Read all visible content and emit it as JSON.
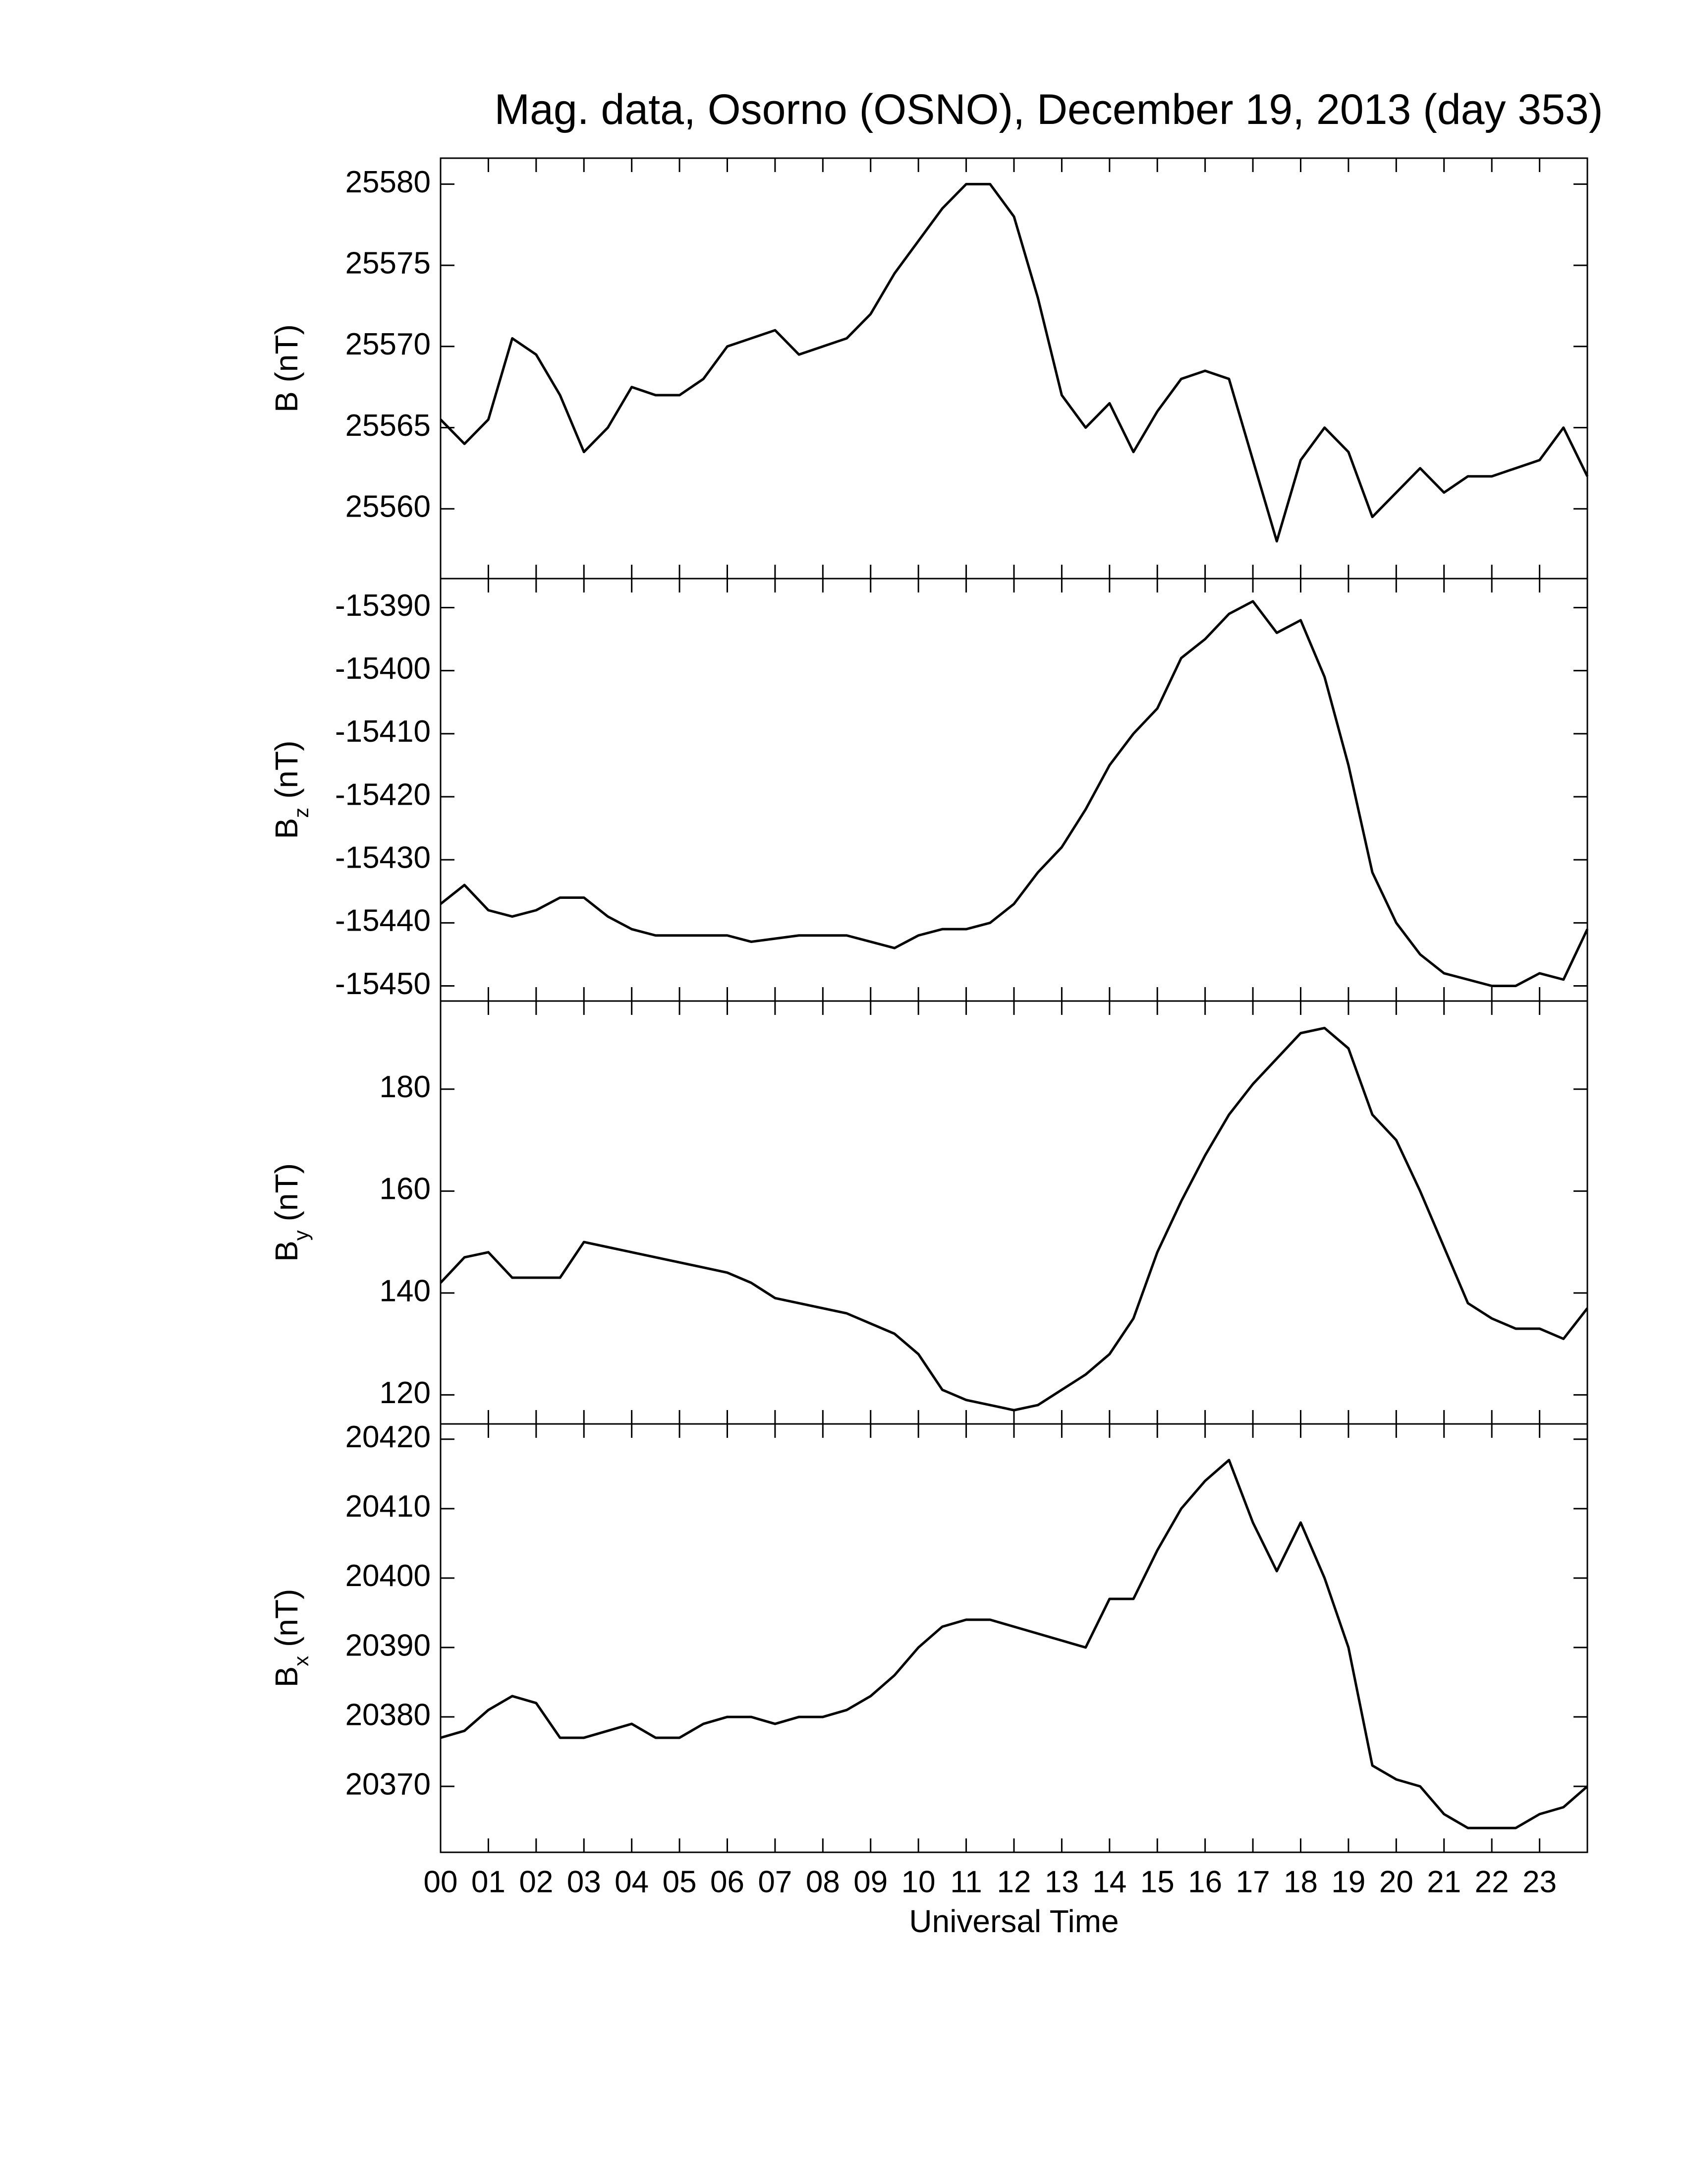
{
  "chart_data": [
    {
      "type": "line",
      "title": "Mag. data, Osorno (OSNO), December 19, 2013 (day 353)",
      "ylabel": "B",
      "ylabel_unit": "(nT)",
      "xlim": [
        0,
        24
      ],
      "ylim": [
        25555.7,
        25581.6
      ],
      "yticks": [
        25560,
        25565,
        25570,
        25575,
        25580
      ],
      "x": [
        0,
        0.5,
        1,
        1.5,
        2,
        2.5,
        3,
        3.5,
        4,
        4.5,
        5,
        5.5,
        6,
        6.5,
        7,
        7.5,
        8,
        8.5,
        9,
        9.5,
        10,
        10.5,
        11,
        11.5,
        12,
        12.5,
        13,
        13.5,
        14,
        14.5,
        15,
        15.5,
        16,
        16.5,
        17,
        17.5,
        18,
        18.5,
        19,
        19.5,
        20,
        20.5,
        21,
        21.5,
        22,
        22.5,
        23,
        23.5,
        24
      ],
      "color": "#000000",
      "values": [
        25565.5,
        25564,
        25565.5,
        25570.5,
        25569.5,
        25567,
        25563.5,
        25565,
        25567.5,
        25567,
        25567,
        25568,
        25570,
        25570.5,
        25571,
        25569.5,
        25570,
        25570.5,
        25572,
        25574.5,
        25576.5,
        25578.5,
        25580,
        25580,
        25578,
        25573,
        25567,
        25565,
        25566.5,
        25563.5,
        25566,
        25568,
        25568.5,
        25568,
        25563,
        25558,
        25563,
        25565,
        25563.5,
        25559.5,
        25561,
        25562.5,
        25561,
        25562,
        25562,
        25562.5,
        25563,
        25565,
        25562
      ]
    },
    {
      "type": "line",
      "ylabel": "B",
      "ylabel_subscript": "z",
      "ylabel_unit": "(nT)",
      "xlim": [
        0,
        24
      ],
      "ylim": [
        -15452.4,
        -15385.4
      ],
      "yticks": [
        -15450,
        -15440,
        -15430,
        -15420,
        -15410,
        -15400,
        -15390
      ],
      "x": [
        0,
        0.5,
        1,
        1.5,
        2,
        2.5,
        3,
        3.5,
        4,
        4.5,
        5,
        5.5,
        6,
        6.5,
        7,
        7.5,
        8,
        8.5,
        9,
        9.5,
        10,
        10.5,
        11,
        11.5,
        12,
        12.5,
        13,
        13.5,
        14,
        14.5,
        15,
        15.5,
        16,
        16.5,
        17,
        17.5,
        18,
        18.5,
        19,
        19.5,
        20,
        20.5,
        21,
        21.5,
        22,
        22.5,
        23,
        23.5,
        24
      ],
      "color": "#000000",
      "values": [
        -15437,
        -15434,
        -15438,
        -15439,
        -15438,
        -15436,
        -15436,
        -15439,
        -15441,
        -15442,
        -15442,
        -15442,
        -15442,
        -15443,
        -15442.5,
        -15442,
        -15442,
        -15442,
        -15443,
        -15444,
        -15442,
        -15441,
        -15441,
        -15440,
        -15437,
        -15432,
        -15428,
        -15422,
        -15415,
        -15410,
        -15406,
        -15398,
        -15395,
        -15391,
        -15389,
        -15394,
        -15392,
        -15401,
        -15415,
        -15432,
        -15440,
        -15445,
        -15448,
        -15449,
        -15450,
        -15450,
        -15448,
        -15449,
        -15441
      ]
    },
    {
      "type": "line",
      "ylabel": "B",
      "ylabel_subscript": "y",
      "ylabel_unit": "(nT)",
      "xlim": [
        0,
        24
      ],
      "ylim": [
        114.3,
        197.3
      ],
      "yticks": [
        120,
        140,
        160,
        180
      ],
      "x": [
        0,
        0.5,
        1,
        1.5,
        2,
        2.5,
        3,
        3.5,
        4,
        4.5,
        5,
        5.5,
        6,
        6.5,
        7,
        7.5,
        8,
        8.5,
        9,
        9.5,
        10,
        10.5,
        11,
        11.5,
        12,
        12.5,
        13,
        13.5,
        14,
        14.5,
        15,
        15.5,
        16,
        16.5,
        17,
        17.5,
        18,
        18.5,
        19,
        19.5,
        20,
        20.5,
        21,
        21.5,
        22,
        22.5,
        23,
        23.5,
        24
      ],
      "color": "#000000",
      "values": [
        142,
        147,
        148,
        143,
        143,
        143,
        150,
        149,
        148,
        147,
        146,
        145,
        144,
        142,
        139,
        138,
        137,
        136,
        134,
        132,
        128,
        121,
        119,
        118,
        117,
        118,
        121,
        124,
        128,
        135,
        148,
        158,
        167,
        175,
        181,
        186,
        191,
        192,
        188,
        175,
        170,
        160,
        149,
        138,
        135,
        133,
        133,
        131,
        137
      ]
    },
    {
      "type": "line",
      "ylabel": "B",
      "ylabel_subscript": "x",
      "ylabel_unit": "(nT)",
      "xlabel": "Universal Time",
      "xlim": [
        0,
        24
      ],
      "ylim": [
        20360.5,
        20422.2
      ],
      "yticks": [
        20370,
        20380,
        20390,
        20400,
        20410,
        20420
      ],
      "xticks": [
        {
          "value": 0,
          "label": "00"
        },
        {
          "value": 1,
          "label": "01"
        },
        {
          "value": 2,
          "label": "02"
        },
        {
          "value": 3,
          "label": "03"
        },
        {
          "value": 4,
          "label": "04"
        },
        {
          "value": 5,
          "label": "05"
        },
        {
          "value": 6,
          "label": "06"
        },
        {
          "value": 7,
          "label": "07"
        },
        {
          "value": 8,
          "label": "08"
        },
        {
          "value": 9,
          "label": "09"
        },
        10,
        11,
        12,
        13,
        14,
        15,
        16,
        17,
        18,
        19,
        20,
        21,
        22,
        23
      ],
      "x": [
        0,
        0.5,
        1,
        1.5,
        2,
        2.5,
        3,
        3.5,
        4,
        4.5,
        5,
        5.5,
        6,
        6.5,
        7,
        7.5,
        8,
        8.5,
        9,
        9.5,
        10,
        10.5,
        11,
        11.5,
        12,
        12.5,
        13,
        13.5,
        14,
        14.5,
        15,
        15.5,
        16,
        16.5,
        17,
        17.5,
        18,
        18.5,
        19,
        19.5,
        20,
        20.5,
        21,
        21.5,
        22,
        22.5,
        23,
        23.5,
        24
      ],
      "color": "#000000",
      "values": [
        20377,
        20378,
        20381,
        20383,
        20382,
        20377,
        20377,
        20378,
        20379,
        20377,
        20377,
        20379,
        20380,
        20380,
        20379,
        20380,
        20380,
        20381,
        20383,
        20386,
        20390,
        20393,
        20394,
        20394,
        20393,
        20392,
        20391,
        20390,
        20397,
        20397,
        20404,
        20410,
        20414,
        20417,
        20408,
        20401,
        20408,
        20400,
        20390,
        20373,
        20371,
        20370,
        20366,
        20364,
        20364,
        20364,
        20366,
        20367,
        20370
      ]
    }
  ]
}
